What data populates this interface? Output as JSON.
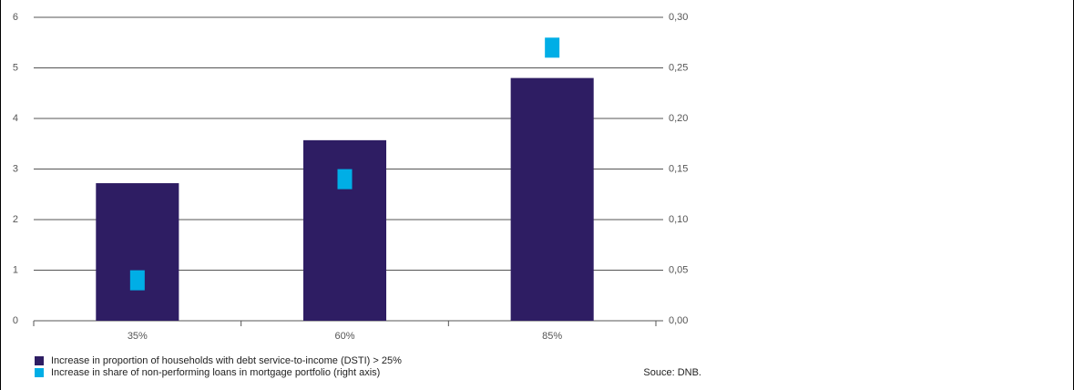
{
  "chart_data": {
    "type": "bar",
    "categories": [
      "35%",
      "60%",
      "85%"
    ],
    "series": [
      {
        "name": "Increase in proportion of households with debt service-to-income (DSTI) > 25%",
        "color": "#2e1d63",
        "values": [
          2.72,
          3.57,
          4.8
        ]
      },
      {
        "name": "Increase in share of non-performing loans in mortgage portfolio (right axis)",
        "color": "#00aee6",
        "values": [
          0.04,
          0.14,
          0.27
        ],
        "axis": "y2",
        "marker": "square"
      }
    ],
    "ylim": [
      0,
      6
    ],
    "yticks": [
      0,
      1,
      2,
      3,
      4,
      5,
      6
    ],
    "y2lim": [
      0,
      0.3
    ],
    "y2ticks": [
      {
        "value": 0,
        "label": "0,00"
      },
      {
        "value": 0.05,
        "label": "0,05"
      },
      {
        "value": 0.1,
        "label": "0,10"
      },
      {
        "value": 0.15,
        "label": "0,15"
      },
      {
        "value": 0.2,
        "label": "0,20"
      },
      {
        "value": 0.25,
        "label": "0,25"
      },
      {
        "value": 0.3,
        "label": "0,30"
      }
    ],
    "grid": true,
    "source": "Souce: DNB."
  }
}
